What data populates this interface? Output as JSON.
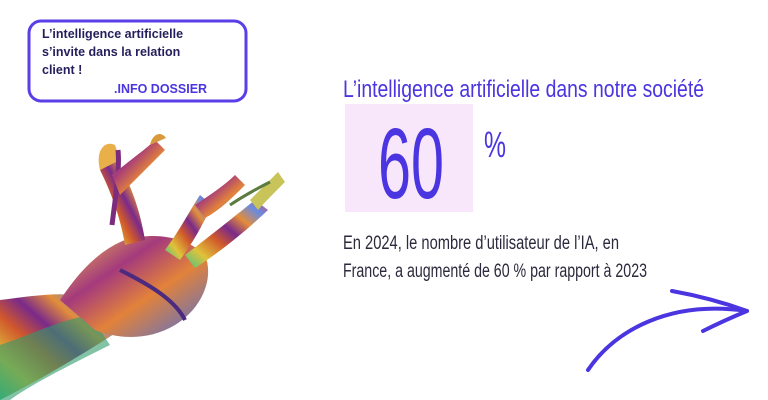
{
  "badge": {
    "lines": [
      "L’intelligence artificielle",
      "s’invite dans la relation",
      "client !"
    ],
    "tag": ".INFO DOSSIER"
  },
  "heading": "L’intelligence artificielle dans notre société",
  "stat": {
    "number": "60",
    "unit": "%"
  },
  "description": [
    "En 2024, le nombre d’utilisateur de l’IA, en",
    "France, a augmenté de 60 % par rapport à 2023"
  ]
}
